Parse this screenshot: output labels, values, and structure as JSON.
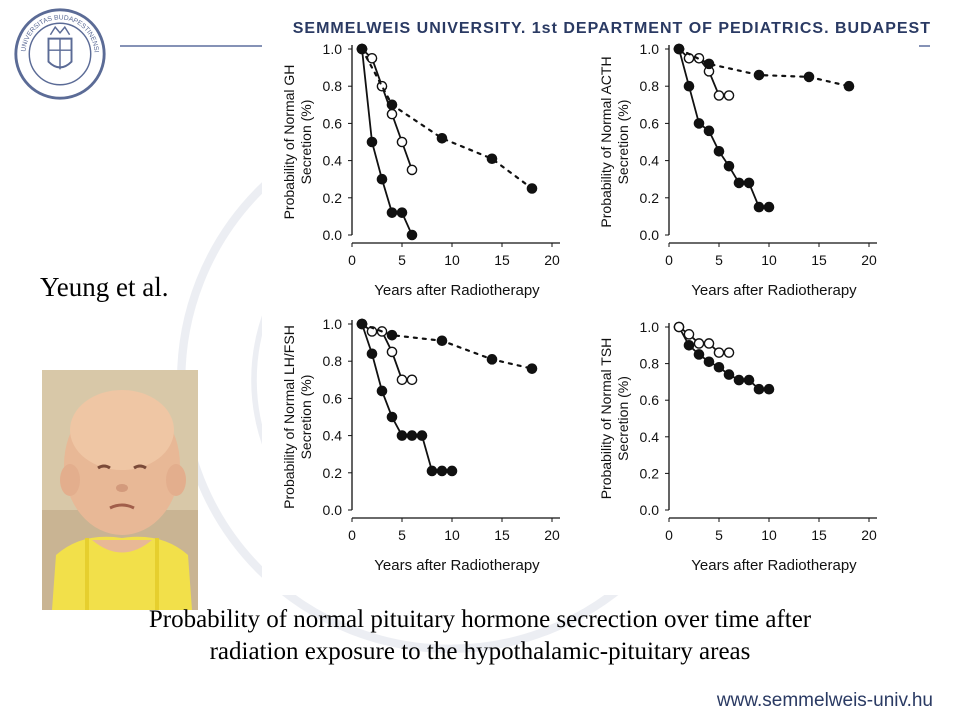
{
  "header": {
    "institution": "SEMMELWEIS UNIVERSITY, 1st DEPARTMENT OF PEDIATRICS, BUDAPEST",
    "seal_text": "UNIVERSITAS BUDAPESTINENSIS DE SEMMELWEIS NOMINATA 1769"
  },
  "author": "Yeung et al.",
  "caption": {
    "line1": "Probability of  normal pituitary hormone secrection over time after",
    "line2": "radiation exposure to the hypothalamic-pituitary areas"
  },
  "footer": {
    "url": "www.semmelweis-univ.hu"
  },
  "colors": {
    "header_text": "#2a3a63",
    "header_line": "#8592b6",
    "marker": "#111111"
  },
  "chart_data": [
    {
      "type": "line",
      "ylabel": "Probability of Normal GH Secretion (%)",
      "xlabel": "Years after Radiotherapy",
      "xlim": [
        0,
        20
      ],
      "ylim": [
        0,
        1.0
      ],
      "xticks": [
        "0",
        "5",
        "10",
        "15",
        "20"
      ],
      "yticks": [
        "0.0",
        "0.2",
        "0.4",
        "0.6",
        "0.8",
        "1.0"
      ],
      "series": [
        {
          "marker": "filled",
          "style": "solid",
          "x": [
            1,
            2,
            3,
            4,
            5,
            6
          ],
          "y": [
            1.0,
            0.5,
            0.3,
            0.12,
            0.12,
            0.0
          ]
        },
        {
          "marker": "open",
          "style": "solid",
          "x": [
            1,
            2,
            3,
            4,
            5,
            6
          ],
          "y": [
            1.0,
            0.95,
            0.8,
            0.65,
            0.5,
            0.35
          ]
        },
        {
          "marker": "filled",
          "style": "dotted",
          "x": [
            1,
            4,
            9,
            14,
            18
          ],
          "y": [
            1.0,
            0.7,
            0.52,
            0.41,
            0.25
          ]
        }
      ]
    },
    {
      "type": "line",
      "ylabel": "Probability of Normal ACTH Secretion (%)",
      "xlabel": "Years after Radiotherapy",
      "xlim": [
        0,
        20
      ],
      "ylim": [
        0,
        1.0
      ],
      "xticks": [
        "0",
        "5",
        "10",
        "15",
        "20"
      ],
      "yticks": [
        "0.0",
        "0.2",
        "0.4",
        "0.6",
        "0.8",
        "1.0"
      ],
      "series": [
        {
          "marker": "filled",
          "style": "solid",
          "x": [
            1,
            2,
            3,
            4,
            5,
            6,
            7,
            8,
            9,
            10
          ],
          "y": [
            1.0,
            0.8,
            0.6,
            0.56,
            0.45,
            0.37,
            0.28,
            0.28,
            0.15,
            0.15
          ]
        },
        {
          "marker": "open",
          "style": "solid",
          "x": [
            1,
            2,
            3,
            4,
            5,
            6
          ],
          "y": [
            1.0,
            0.95,
            0.95,
            0.88,
            0.75,
            0.75
          ]
        },
        {
          "marker": "filled",
          "style": "dotted",
          "x": [
            1,
            4,
            9,
            14,
            18
          ],
          "y": [
            1.0,
            0.92,
            0.86,
            0.85,
            0.8
          ]
        }
      ]
    },
    {
      "type": "line",
      "ylabel": "Probability of Normal LH/FSH Secretion (%)",
      "xlabel": "Years after Radiotherapy",
      "xlim": [
        0,
        20
      ],
      "ylim": [
        0,
        1.0
      ],
      "xticks": [
        "0",
        "5",
        "10",
        "15",
        "20"
      ],
      "yticks": [
        "0.0",
        "0.2",
        "0.4",
        "0.6",
        "0.8",
        "1.0"
      ],
      "series": [
        {
          "marker": "filled",
          "style": "solid",
          "x": [
            1,
            2,
            3,
            4,
            5,
            6,
            7,
            8,
            9,
            10
          ],
          "y": [
            1.0,
            0.84,
            0.64,
            0.5,
            0.4,
            0.4,
            0.4,
            0.21,
            0.21,
            0.21
          ]
        },
        {
          "marker": "open",
          "style": "solid",
          "x": [
            1,
            2,
            3,
            4,
            5,
            6
          ],
          "y": [
            1.0,
            0.96,
            0.96,
            0.85,
            0.7,
            0.7
          ]
        },
        {
          "marker": "filled",
          "style": "dotted",
          "x": [
            1,
            4,
            9,
            14,
            18
          ],
          "y": [
            1.0,
            0.94,
            0.91,
            0.81,
            0.76
          ]
        }
      ]
    },
    {
      "type": "line",
      "ylabel": "Probability of Normal TSH Secretion (%)",
      "xlabel": "Years after Radiotherapy",
      "xlim": [
        0,
        20
      ],
      "ylim": [
        0,
        1.0
      ],
      "xticks": [
        "0",
        "5",
        "10",
        "15",
        "20"
      ],
      "yticks": [
        "0.0",
        "0.2",
        "0.4",
        "0.6",
        "0.8",
        "1.0"
      ],
      "series": [
        {
          "marker": "filled",
          "style": "solid",
          "x": [
            1,
            2,
            3,
            4,
            5,
            6,
            7,
            8,
            9,
            10
          ],
          "y": [
            1.0,
            0.9,
            0.85,
            0.81,
            0.78,
            0.74,
            0.71,
            0.71,
            0.66,
            0.66
          ]
        },
        {
          "marker": "open",
          "style": "solid",
          "x": [
            1,
            2,
            3,
            4,
            5,
            6
          ],
          "y": [
            1.0,
            0.96,
            0.91,
            0.91,
            0.86,
            0.86
          ]
        }
      ]
    }
  ]
}
